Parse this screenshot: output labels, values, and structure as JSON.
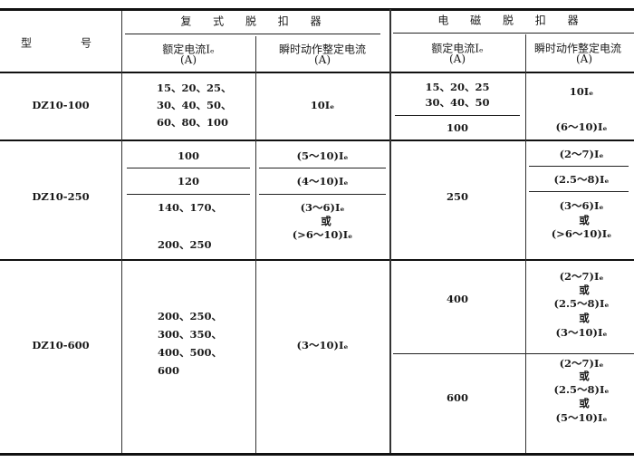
{
  "header": {
    "model": "型　　号",
    "compound_trip": "复 式 脱 扣 器",
    "magnetic_trip": "电 磁 脱 扣 器",
    "rated_current": "额定电流Iₑ",
    "unit": "(A)",
    "instant_setting": "瞬时动作整定电流"
  },
  "rows": [
    {
      "model": "DZ10-100",
      "compound_rated": [
        "15、20、25、",
        "30、40、50、",
        "60、80、100"
      ],
      "compound_instant": "10Iₑ",
      "magnetic_rated": [
        "15、20、25",
        "30、40、50",
        "100"
      ],
      "magnetic_instant": [
        "10Iₑ",
        "(6～10)Iₑ"
      ]
    },
    {
      "model": "DZ10-250",
      "compound_rated": [
        "100",
        "120",
        "140、170、",
        "200、250"
      ],
      "compound_instant": [
        "(5～10)Iₑ",
        "(4～10)Iₑ",
        "(3～6)Iₑ",
        "或",
        "(>6～10)Iₑ"
      ],
      "magnetic_rated": "250",
      "magnetic_instant": [
        "(2～7)Iₑ",
        "(2.5～8)Iₑ",
        "(3～6)Iₑ",
        "或",
        "(>6～10)Iₑ"
      ]
    },
    {
      "model": "DZ10-600",
      "compound_rated": [
        "200、250、",
        "300、350、",
        "400、500、",
        "600"
      ],
      "compound_instant": "(3～10)Iₑ",
      "magnetic_rated": [
        "400",
        "600"
      ],
      "magnetic_instant": [
        "(2～7)Iₑ",
        "或",
        "(2.5～8)Iₑ",
        "或",
        "(3～10)Iₑ",
        "(2～7)Iₑ",
        "或",
        "(2.5～8)Iₑ",
        "或",
        "(5～10)Iₑ"
      ]
    }
  ]
}
